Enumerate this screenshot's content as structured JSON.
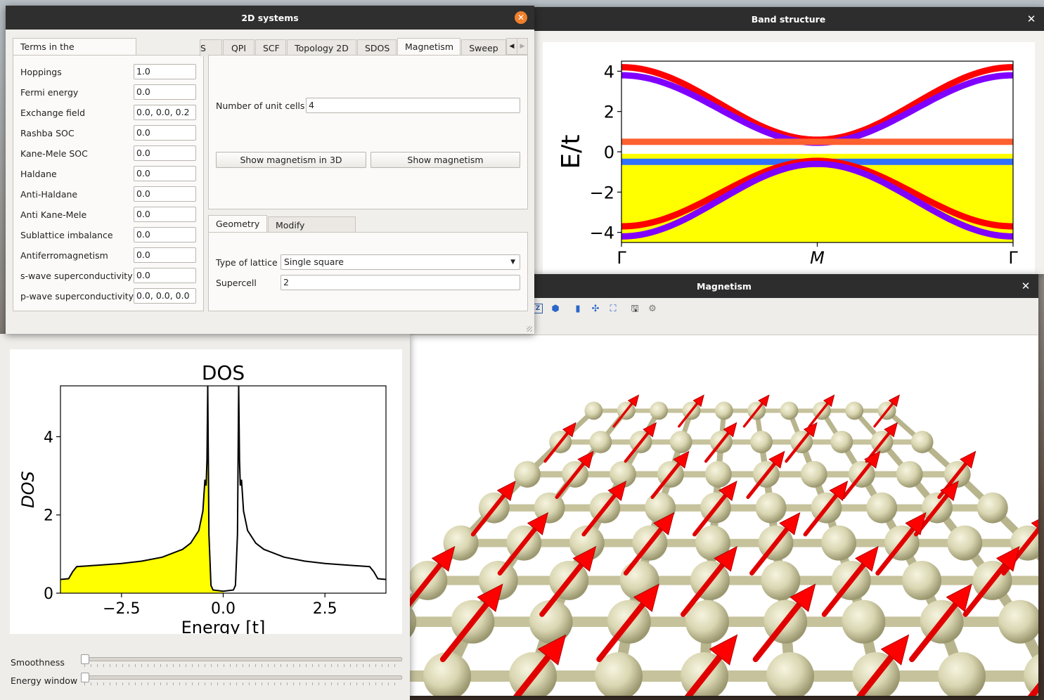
{
  "main_window": {
    "title": "2D systems",
    "left_tab": "Terms in the Hamiltonian",
    "terms": [
      {
        "label": "Hoppings",
        "value": "1.0"
      },
      {
        "label": "Fermi energy",
        "value": "0.0"
      },
      {
        "label": "Exchange field",
        "value": "0.0, 0.0, 0.2"
      },
      {
        "label": "Rashba SOC",
        "value": "0.0"
      },
      {
        "label": "Kane-Mele SOC",
        "value": "0.0"
      },
      {
        "label": "Haldane",
        "value": "0.0"
      },
      {
        "label": "Anti-Haldane",
        "value": "0.0"
      },
      {
        "label": "Anti Kane-Mele",
        "value": "0.0"
      },
      {
        "label": "Sublattice imbalance",
        "value": "0.0"
      },
      {
        "label": "Antiferromagnetism",
        "value": "0.0"
      },
      {
        "label": "s-wave superconductivity",
        "value": "0.0"
      },
      {
        "label": "p-wave superconductivity",
        "value": "0.0, 0.0, 0.0"
      }
    ],
    "right_tabs": [
      "S",
      "QPI",
      "SCF",
      "Topology 2D",
      "SDOS",
      "Magnetism",
      "Sweep"
    ],
    "active_right_tab": "Magnetism",
    "magnetism": {
      "unit_cells_label": "Number of unit cells",
      "unit_cells_value": "4",
      "show_3d_button": "Show magnetism in 3D",
      "show_button": "Show magnetism"
    },
    "geometry_tabs": [
      "Geometry",
      "Modify geometry"
    ],
    "geometry": {
      "lattice_label": "Type of lattice",
      "lattice_value": "Single square",
      "supercell_label": "Supercell",
      "supercell_value": "2"
    }
  },
  "band_window": {
    "title": "Band structure",
    "chart_data": {
      "type": "line",
      "ylabel": "E/t",
      "ylim": [
        -4.5,
        4.5
      ],
      "yticks": [
        "4",
        "2",
        "0",
        "−2",
        "−4"
      ],
      "xticks": [
        "Γ",
        "M",
        "Γ"
      ],
      "occupied_fill_color": "#ffff00",
      "series": [
        {
          "values": [
            4.2,
            0.6,
            4.2
          ],
          "color": "#ff0000"
        },
        {
          "values": [
            3.8,
            0.45,
            3.8
          ],
          "color": "#8000ff"
        },
        {
          "values": [
            0.5,
            0.5,
            0.5
          ],
          "color": "#ff6030"
        },
        {
          "values": [
            -0.5,
            -0.5,
            -0.5
          ],
          "color": "#3070ff"
        },
        {
          "values": [
            -3.7,
            -0.45,
            -3.7
          ],
          "color": "#ff0000"
        },
        {
          "values": [
            -4.2,
            -0.6,
            -4.2
          ],
          "color": "#8000ff"
        }
      ]
    }
  },
  "magnetism_window": {
    "title": "Magnetism"
  },
  "dos_window": {
    "chart_data": {
      "type": "line",
      "title": "DOS",
      "xlabel": "Energy [t]",
      "ylabel": "DOS",
      "xlim": [
        -4.0,
        4.0
      ],
      "ylim": [
        0,
        5.3
      ],
      "xticks": [
        "−2.5",
        "0.0",
        "2.5"
      ],
      "yticks": [
        "0",
        "2",
        "4"
      ],
      "fill_color": "#ffff00",
      "line_color": "#000000",
      "x": [
        -4.0,
        -3.8,
        -3.7,
        -3.6,
        -3.0,
        -2.5,
        -2.0,
        -1.5,
        -1.0,
        -0.8,
        -0.6,
        -0.5,
        -0.45,
        -0.42,
        -0.4,
        -0.38,
        -0.35,
        -0.3,
        -0.25,
        0.0,
        0.25,
        0.3,
        0.35,
        0.38,
        0.4,
        0.42,
        0.45,
        0.5,
        0.6,
        0.8,
        1.0,
        1.5,
        2.0,
        2.5,
        3.0,
        3.6,
        3.7,
        3.8,
        4.0
      ],
      "y": [
        0.35,
        0.37,
        0.55,
        0.68,
        0.72,
        0.76,
        0.82,
        0.92,
        1.12,
        1.28,
        1.6,
        2.1,
        2.9,
        2.75,
        3.4,
        5.3,
        1.5,
        0.2,
        0.08,
        0.05,
        0.08,
        0.2,
        1.5,
        5.3,
        3.4,
        2.75,
        2.9,
        2.1,
        1.6,
        1.28,
        1.12,
        0.92,
        0.82,
        0.76,
        0.72,
        0.68,
        0.55,
        0.37,
        0.35
      ]
    },
    "sliders": [
      {
        "label": "Smoothness",
        "value": 0
      },
      {
        "label": "Energy window",
        "value": 0
      }
    ]
  }
}
